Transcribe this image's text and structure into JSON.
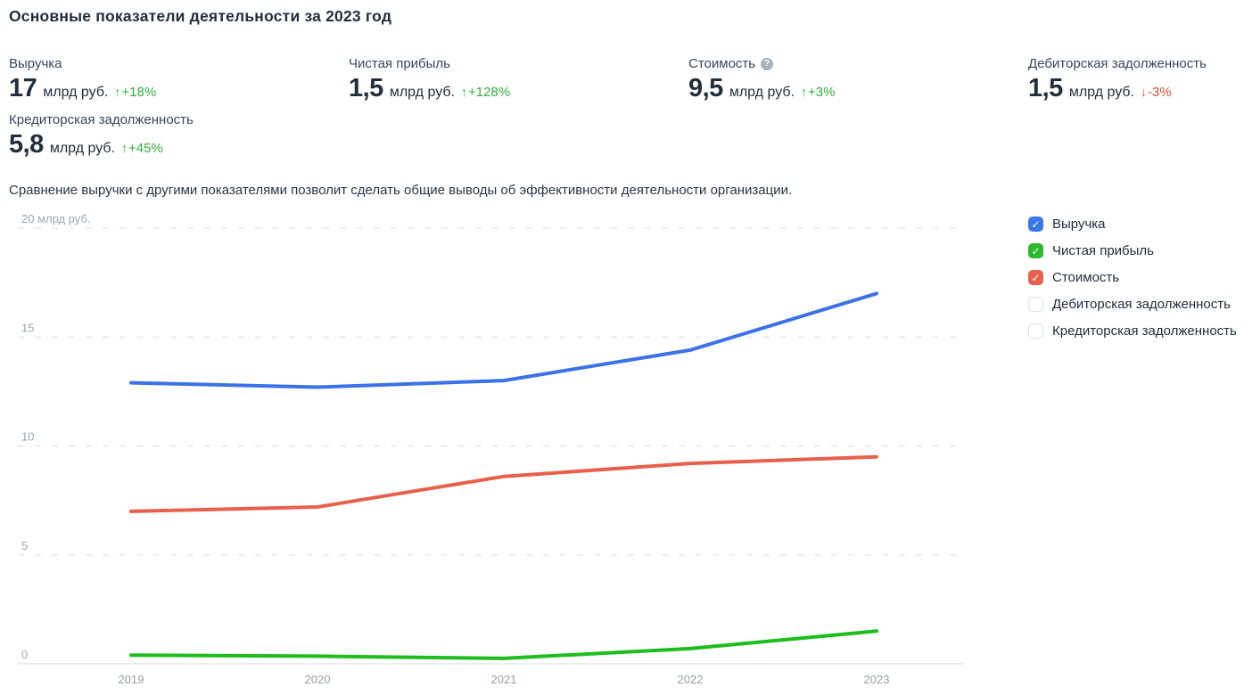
{
  "title": "Основные показатели деятельности за 2023 год",
  "description": "Сравнение выручки с другими показателями позволит сделать общие выводы об эффективности деятельности организации.",
  "icons": {
    "checkmark": "✓",
    "help": "?",
    "up_arrow": "↑",
    "down_arrow": "↓"
  },
  "colors": {
    "revenue_blue": "#3b78e7",
    "profit_green": "#1dbd1d",
    "value_red": "#e8604c",
    "delta_up_green": "#2fad3c",
    "delta_down_red": "#e2493d",
    "grid_gray": "#d9dde1",
    "axis_label_gray": "#9aa6b2"
  },
  "metrics": [
    {
      "label": "Выручка",
      "value": "17",
      "unit": "млрд руб.",
      "arrow": "↑",
      "delta": "+18%",
      "trend": "up"
    },
    {
      "label": "Чистая прибыль",
      "value": "1,5",
      "unit": "млрд руб.",
      "arrow": "↑",
      "delta": "+128%",
      "trend": "up"
    },
    {
      "label": "Стоимость",
      "value": "9,5",
      "unit": "млрд руб.",
      "arrow": "↑",
      "delta": "+3%",
      "trend": "up",
      "has_help_icon": true
    },
    {
      "label": "Дебиторская задолженность",
      "value": "1,5",
      "unit": "млрд руб.",
      "arrow": "↓",
      "delta": "-3%",
      "trend": "down"
    },
    {
      "label": "Кредиторская задолженность",
      "value": "5,8",
      "unit": "млрд руб.",
      "arrow": "↑",
      "delta": "+45%",
      "trend": "up"
    }
  ],
  "legend": {
    "items": [
      {
        "label": "Выручка",
        "color": "#3b78e7",
        "checked": true
      },
      {
        "label": "Чистая прибыль",
        "color": "#2eb82e",
        "checked": true
      },
      {
        "label": "Стоимость",
        "color": "#e8614e",
        "checked": true
      },
      {
        "label": "Дебиторская задолженность",
        "color": "",
        "checked": false
      },
      {
        "label": "Кредиторская задолженность",
        "color": "",
        "checked": false
      }
    ]
  },
  "chart_data": {
    "type": "line",
    "x": [
      "2019",
      "2020",
      "2021",
      "2022",
      "2023"
    ],
    "series": [
      {
        "name": "Выручка",
        "color": "#3d72e6",
        "values": [
          12.9,
          12.7,
          13.0,
          14.4,
          17.0
        ]
      },
      {
        "name": "Чистая прибыль",
        "color": "#1dbd1d",
        "values": [
          0.4,
          0.35,
          0.25,
          0.7,
          1.5
        ]
      },
      {
        "name": "Стоимость",
        "color": "#e8604c",
        "values": [
          7.0,
          7.2,
          8.6,
          9.2,
          9.5
        ]
      }
    ],
    "yticks": [
      0,
      5,
      10,
      15,
      20
    ],
    "ytick_labels": [
      "0",
      "5",
      "10",
      "15",
      "20 млрд руб."
    ],
    "ylim": [
      0,
      20
    ],
    "ylabel_unit": "млрд руб.",
    "grid": "dashed-horizontal",
    "legend_position": "right"
  }
}
